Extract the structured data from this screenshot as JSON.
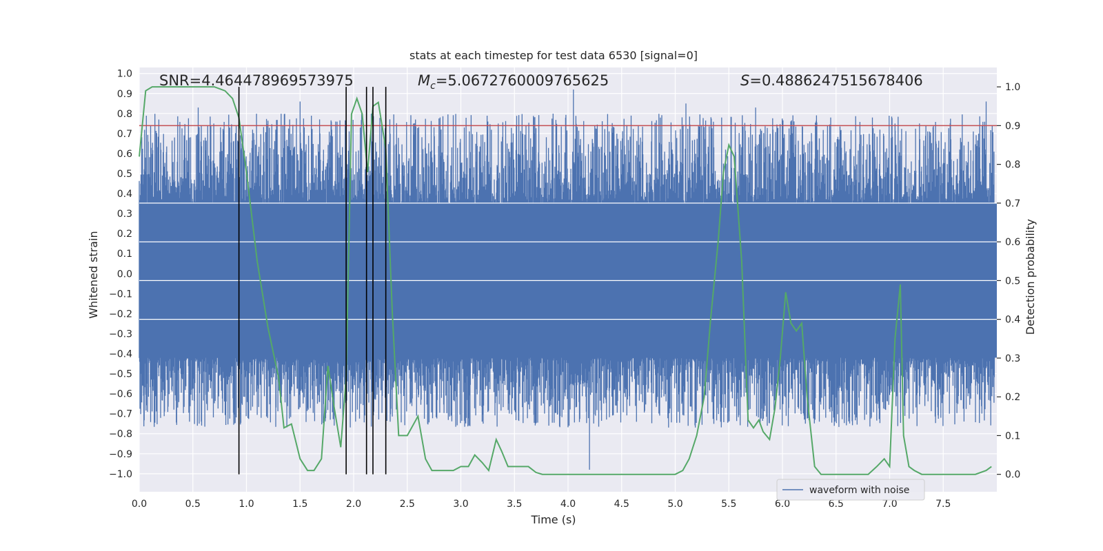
{
  "chart_data": {
    "type": "line",
    "title": "stats at each timestep for test data 6530 [signal=0]",
    "xlabel": "Time (s)",
    "ylabel_left": "Whitened strain",
    "ylabel_right": "Detection probability",
    "xlim": [
      0.0,
      8.0
    ],
    "ylim_left": [
      -1.09,
      1.03
    ],
    "ylim_right": [
      -0.045,
      1.05
    ],
    "x_ticks": [
      0.0,
      0.5,
      1.0,
      1.5,
      2.0,
      2.5,
      3.0,
      3.5,
      4.0,
      4.5,
      5.0,
      5.5,
      6.0,
      6.5,
      7.0,
      7.5
    ],
    "x_tick_labels": [
      "0.0",
      "0.5",
      "1.0",
      "1.5",
      "2.0",
      "2.5",
      "3.0",
      "3.5",
      "4.0",
      "4.5",
      "5.0",
      "5.5",
      "6.0",
      "6.5",
      "7.0",
      "7.5"
    ],
    "y_left_ticks": [
      1.0,
      0.9,
      0.8,
      0.7,
      0.6,
      0.5,
      0.4,
      0.3,
      0.2,
      0.1,
      0.0,
      -0.1,
      -0.2,
      -0.3,
      -0.4,
      -0.5,
      -0.6,
      -0.7,
      -0.8,
      -0.9,
      -1.0
    ],
    "y_left_tick_labels": [
      "1.0",
      "0.9",
      "0.8",
      "0.7",
      "0.6",
      "0.5",
      "0.4",
      "0.3",
      "0.2",
      "0.1",
      "0.0",
      "−0.1",
      "−0.2",
      "−0.3",
      "−0.4",
      "−0.5",
      "−0.6",
      "−0.7",
      "−0.8",
      "−0.9",
      "−1.0"
    ],
    "y_right_ticks": [
      1.0,
      0.9,
      0.8,
      0.7,
      0.6,
      0.5,
      0.4,
      0.3,
      0.2,
      0.1,
      0.0
    ],
    "y_right_tick_labels": [
      "1.0",
      "0.9",
      "0.8",
      "0.7",
      "0.6",
      "0.5",
      "0.4",
      "0.3",
      "0.2",
      "0.1",
      "0.0"
    ],
    "annotations": {
      "snr": "SNR=4.464478969573975",
      "mc_symbol": "M",
      "mc_sub": "c",
      "mc_value": "=5.0672760009765625",
      "s_symbol": "S",
      "s_value": "=0.4886247515678406"
    },
    "threshold": {
      "value": 0.9,
      "axis": "right",
      "color": "#c44e52"
    },
    "detection_lines_x": [
      0.93,
      1.93,
      2.12,
      2.18,
      2.3
    ],
    "waveform_series": {
      "name": "waveform with noise",
      "color": "#4c72b0",
      "description_note": "dense noisy strain centered near 0 with peaks roughly ±0.4-0.9",
      "band_min": -0.42,
      "band_max": 0.35,
      "peaks_x": [
        0.55,
        1.5,
        2.3,
        4.05,
        4.2,
        5.1,
        5.75,
        6.45,
        7.05,
        7.9
      ],
      "peaks_y": [
        0.83,
        0.86,
        0.73,
        0.92,
        -0.98,
        0.85,
        0.83,
        0.78,
        0.75,
        0.86
      ]
    },
    "probability_series": {
      "name": "Detection probability",
      "color": "#55a868",
      "x": [
        0.0,
        0.06,
        0.12,
        0.2,
        0.3,
        0.4,
        0.5,
        0.6,
        0.7,
        0.8,
        0.87,
        0.93,
        1.0,
        1.1,
        1.2,
        1.3,
        1.35,
        1.42,
        1.5,
        1.57,
        1.63,
        1.7,
        1.76,
        1.82,
        1.88,
        1.93,
        1.98,
        2.03,
        2.08,
        2.13,
        2.18,
        2.23,
        2.3,
        2.36,
        2.42,
        2.5,
        2.6,
        2.67,
        2.73,
        2.8,
        2.87,
        2.93,
        3.0,
        3.07,
        3.13,
        3.2,
        3.26,
        3.33,
        3.38,
        3.44,
        3.5,
        3.56,
        3.63,
        3.7,
        3.76,
        3.82,
        3.9,
        4.0,
        4.2,
        4.5,
        4.8,
        5.0,
        5.07,
        5.13,
        5.2,
        5.27,
        5.33,
        5.4,
        5.45,
        5.5,
        5.55,
        5.62,
        5.68,
        5.73,
        5.78,
        5.82,
        5.88,
        5.93,
        5.98,
        6.03,
        6.08,
        6.13,
        6.18,
        6.23,
        6.3,
        6.36,
        6.42,
        6.48,
        6.55,
        6.65,
        6.8,
        6.88,
        6.95,
        7.0,
        7.05,
        7.1,
        7.13,
        7.18,
        7.23,
        7.3,
        7.4,
        7.5,
        7.65,
        7.8,
        7.9,
        7.95
      ],
      "y": [
        0.82,
        0.99,
        1.0,
        1.0,
        1.0,
        1.0,
        1.0,
        1.0,
        1.0,
        0.99,
        0.97,
        0.92,
        0.78,
        0.55,
        0.38,
        0.25,
        0.12,
        0.13,
        0.04,
        0.01,
        0.01,
        0.04,
        0.28,
        0.17,
        0.07,
        0.25,
        0.93,
        0.97,
        0.93,
        0.78,
        0.95,
        0.96,
        0.84,
        0.42,
        0.1,
        0.1,
        0.15,
        0.04,
        0.01,
        0.01,
        0.01,
        0.01,
        0.02,
        0.02,
        0.05,
        0.03,
        0.01,
        0.09,
        0.06,
        0.02,
        0.02,
        0.02,
        0.02,
        0.005,
        0.0,
        0.0,
        0.0,
        0.0,
        0.0,
        0.0,
        0.0,
        0.0,
        0.01,
        0.04,
        0.1,
        0.2,
        0.4,
        0.6,
        0.78,
        0.85,
        0.82,
        0.55,
        0.14,
        0.12,
        0.14,
        0.11,
        0.09,
        0.17,
        0.3,
        0.47,
        0.39,
        0.37,
        0.39,
        0.2,
        0.02,
        0.0,
        0.0,
        0.0,
        0.0,
        0.0,
        0.0,
        0.02,
        0.04,
        0.02,
        0.35,
        0.49,
        0.1,
        0.02,
        0.01,
        0.0,
        0.0,
        0.0,
        0.0,
        0.0,
        0.01,
        0.02
      ]
    },
    "legend": {
      "placement": "lower-right",
      "entries": [
        "waveform with noise"
      ]
    }
  }
}
